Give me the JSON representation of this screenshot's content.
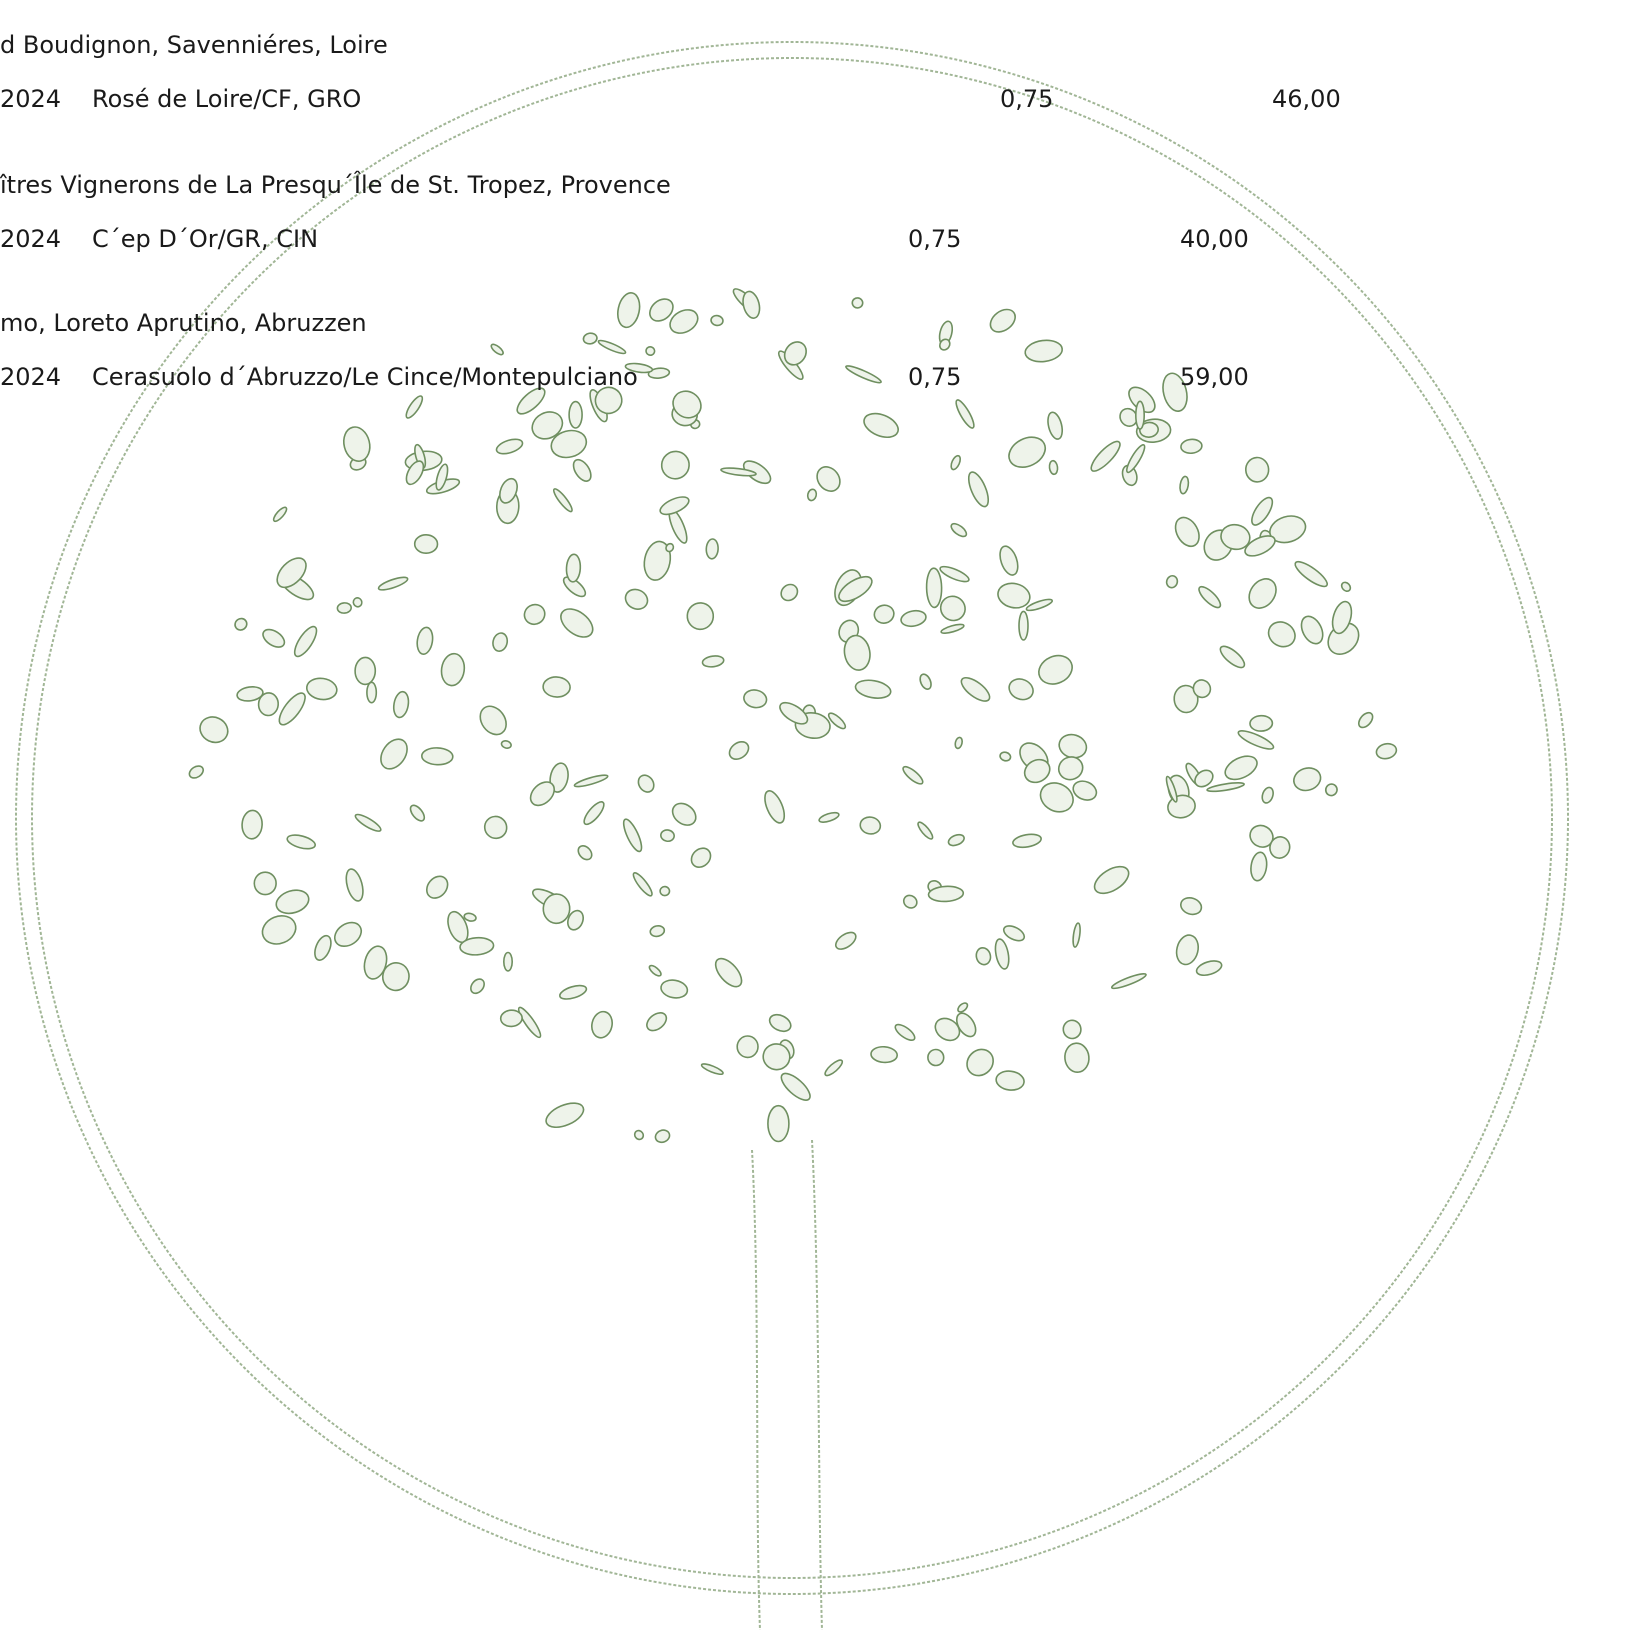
{
  "entries": [
    {
      "producer": "d Boudignon, Savenniéres, Loire",
      "vintage": "2024",
      "wine": "Rosé de Loire/CF, GRO",
      "volume": "0,75",
      "price": "46,00"
    },
    {
      "producer": "îtres Vignerons de La Presqu´Île de St. Tropez, Provence",
      "vintage": "2024",
      "wine": "C´ep D´Or/GR, CIN",
      "volume": "0,75",
      "price": "40,00"
    },
    {
      "producer": "mo, Loreto Aprutino, Abruzzen",
      "vintage": "2024",
      "wine": "Cerasuolo d´Abruzzo/Le Cince/Montepulciano",
      "volume": "0,75",
      "price": "59,00"
    }
  ]
}
